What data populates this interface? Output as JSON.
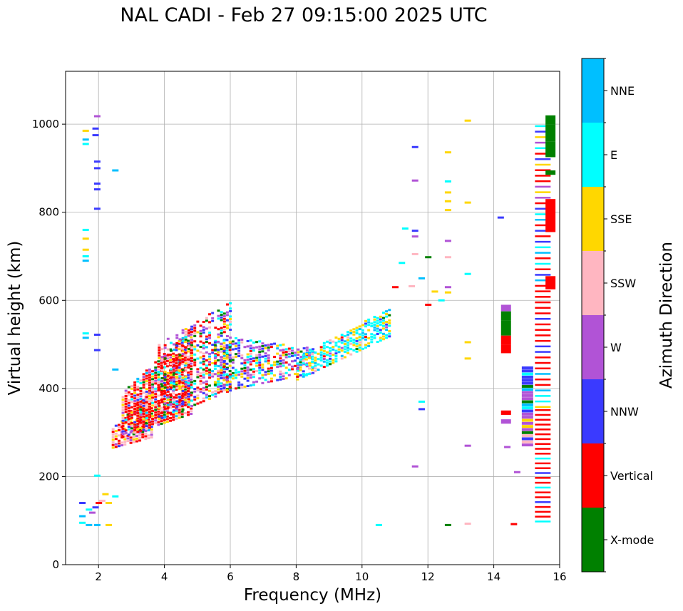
{
  "chart_data": {
    "type": "scatter",
    "title": "NAL CADI - Feb 27 09:15:00 2025 UTC",
    "xlabel": "Frequency (MHz)",
    "ylabel": "Virtual height (km)",
    "xlim": [
      1,
      16
    ],
    "ylim": [
      0,
      1120
    ],
    "xticks": [
      2,
      4,
      6,
      8,
      10,
      12,
      14,
      16
    ],
    "yticks": [
      0,
      200,
      400,
      600,
      800,
      1000
    ],
    "grid": true,
    "colorbar": {
      "label": "Azimuth Direction",
      "categories": [
        {
          "name": "X-mode",
          "color": "#008000"
        },
        {
          "name": "Vertical",
          "color": "#ff0000"
        },
        {
          "name": "NNW",
          "color": "#3a3aff"
        },
        {
          "name": "W",
          "color": "#b153d6"
        },
        {
          "name": "SSW",
          "color": "#ffb6c1"
        },
        {
          "name": "SSE",
          "color": "#ffd700"
        },
        {
          "name": "E",
          "color": "#00ffff"
        },
        {
          "name": "NNE",
          "color": "#00bfff"
        }
      ]
    },
    "points": [
      {
        "f": 1.6,
        "h": 965,
        "c": "NNE"
      },
      {
        "f": 1.6,
        "h": 985,
        "c": "SSE"
      },
      {
        "f": 1.6,
        "h": 955,
        "c": "E"
      },
      {
        "f": 1.9,
        "h": 990,
        "c": "NNW"
      },
      {
        "f": 1.9,
        "h": 975,
        "c": "NNW"
      },
      {
        "f": 1.95,
        "h": 1018,
        "c": "W"
      },
      {
        "f": 1.95,
        "h": 915,
        "c": "NNW"
      },
      {
        "f": 1.95,
        "h": 900,
        "c": "NNW"
      },
      {
        "f": 1.95,
        "h": 865,
        "c": "NNW"
      },
      {
        "f": 1.95,
        "h": 852,
        "c": "NNW"
      },
      {
        "f": 1.95,
        "h": 808,
        "c": "NNW"
      },
      {
        "f": 2.5,
        "h": 895,
        "c": "NNE"
      },
      {
        "f": 1.6,
        "h": 760,
        "c": "E"
      },
      {
        "f": 1.6,
        "h": 740,
        "c": "SSE"
      },
      {
        "f": 1.6,
        "h": 715,
        "c": "SSE"
      },
      {
        "f": 1.6,
        "h": 700,
        "c": "E"
      },
      {
        "f": 1.6,
        "h": 690,
        "c": "NNE"
      },
      {
        "f": 1.6,
        "h": 525,
        "c": "E"
      },
      {
        "f": 1.6,
        "h": 515,
        "c": "NNE"
      },
      {
        "f": 1.95,
        "h": 522,
        "c": "NNW"
      },
      {
        "f": 1.95,
        "h": 487,
        "c": "NNW"
      },
      {
        "f": 2.5,
        "h": 443,
        "c": "NNE"
      },
      {
        "f": 1.5,
        "h": 140,
        "c": "NNW"
      },
      {
        "f": 1.5,
        "h": 110,
        "c": "NNE"
      },
      {
        "f": 1.5,
        "h": 95,
        "c": "E"
      },
      {
        "f": 1.7,
        "h": 125,
        "c": "E"
      },
      {
        "f": 1.8,
        "h": 118,
        "c": "W"
      },
      {
        "f": 1.9,
        "h": 130,
        "c": "NNW"
      },
      {
        "f": 2.0,
        "h": 140,
        "c": "Vertical"
      },
      {
        "f": 2.1,
        "h": 145,
        "c": "SSW"
      },
      {
        "f": 2.2,
        "h": 160,
        "c": "SSE"
      },
      {
        "f": 2.3,
        "h": 140,
        "c": "SSE"
      },
      {
        "f": 1.7,
        "h": 90,
        "c": "NNE"
      },
      {
        "f": 1.95,
        "h": 90,
        "c": "NNE"
      },
      {
        "f": 2.3,
        "h": 90,
        "c": "SSE"
      },
      {
        "f": 2.5,
        "h": 155,
        "c": "E"
      },
      {
        "f": 1.95,
        "h": 202,
        "c": "E"
      },
      {
        "f": 10.5,
        "h": 90,
        "c": "E"
      },
      {
        "f": 12.6,
        "h": 90,
        "c": "X-mode"
      },
      {
        "f": 13.2,
        "h": 93,
        "c": "SSW"
      },
      {
        "f": 14.6,
        "h": 92,
        "c": "Vertical"
      },
      {
        "f": 11.6,
        "h": 948,
        "c": "NNW"
      },
      {
        "f": 11.6,
        "h": 872,
        "c": "W"
      },
      {
        "f": 11.6,
        "h": 758,
        "c": "NNW"
      },
      {
        "f": 11.6,
        "h": 745,
        "c": "W"
      },
      {
        "f": 11.6,
        "h": 705,
        "c": "SSW"
      },
      {
        "f": 11.3,
        "h": 763,
        "c": "E"
      },
      {
        "f": 11.2,
        "h": 685,
        "c": "E"
      },
      {
        "f": 12.0,
        "h": 698,
        "c": "X-mode"
      },
      {
        "f": 12.6,
        "h": 936,
        "c": "SSE"
      },
      {
        "f": 12.6,
        "h": 870,
        "c": "E"
      },
      {
        "f": 12.6,
        "h": 845,
        "c": "SSE"
      },
      {
        "f": 12.6,
        "h": 825,
        "c": "SSE"
      },
      {
        "f": 12.6,
        "h": 805,
        "c": "SSE"
      },
      {
        "f": 12.6,
        "h": 735,
        "c": "W"
      },
      {
        "f": 12.6,
        "h": 698,
        "c": "SSW"
      },
      {
        "f": 12.6,
        "h": 630,
        "c": "W"
      },
      {
        "f": 12.6,
        "h": 618,
        "c": "SSE"
      },
      {
        "f": 13.2,
        "h": 1008,
        "c": "SSE"
      },
      {
        "f": 13.2,
        "h": 822,
        "c": "SSE"
      },
      {
        "f": 13.2,
        "h": 660,
        "c": "E"
      },
      {
        "f": 13.2,
        "h": 505,
        "c": "SSE"
      },
      {
        "f": 13.2,
        "h": 468,
        "c": "SSE"
      },
      {
        "f": 13.2,
        "h": 270,
        "c": "W"
      },
      {
        "f": 14.2,
        "h": 788,
        "c": "NNW"
      },
      {
        "f": 14.4,
        "h": 267,
        "c": "W"
      },
      {
        "f": 14.7,
        "h": 210,
        "c": "W"
      },
      {
        "f": 11.8,
        "h": 370,
        "c": "E"
      },
      {
        "f": 11.8,
        "h": 353,
        "c": "NNW"
      },
      {
        "f": 11.6,
        "h": 223,
        "c": "W"
      },
      {
        "f": 12.4,
        "h": 600,
        "c": "E"
      },
      {
        "f": 12.2,
        "h": 620,
        "c": "SSE"
      },
      {
        "f": 12.0,
        "h": 590,
        "c": "Vertical"
      },
      {
        "f": 11.0,
        "h": 630,
        "c": "Vertical"
      },
      {
        "f": 11.5,
        "h": 632,
        "c": "SSW"
      },
      {
        "f": 11.8,
        "h": 650,
        "c": "NNE"
      }
    ],
    "columns": [
      {
        "f": 14.35,
        "segments": [
          {
            "from": 575,
            "to": 590,
            "c": "W"
          },
          {
            "from": 555,
            "to": 575,
            "c": "X-mode"
          },
          {
            "from": 520,
            "to": 555,
            "c": "X-mode"
          },
          {
            "from": 500,
            "to": 520,
            "c": "Vertical"
          },
          {
            "from": 480,
            "to": 500,
            "c": "Vertical"
          },
          {
            "from": 340,
            "to": 350,
            "c": "Vertical"
          },
          {
            "from": 320,
            "to": 330,
            "c": "W"
          }
        ]
      },
      {
        "f": 15.7,
        "segments": [
          {
            "from": 1000,
            "to": 1020,
            "c": "X-mode"
          },
          {
            "from": 960,
            "to": 1000,
            "c": "X-mode"
          },
          {
            "from": 925,
            "to": 960,
            "c": "X-mode"
          },
          {
            "from": 885,
            "to": 895,
            "c": "X-mode"
          },
          {
            "from": 755,
            "to": 830,
            "c": "Vertical"
          },
          {
            "from": 625,
            "to": 655,
            "c": "Vertical"
          }
        ]
      }
    ]
  }
}
